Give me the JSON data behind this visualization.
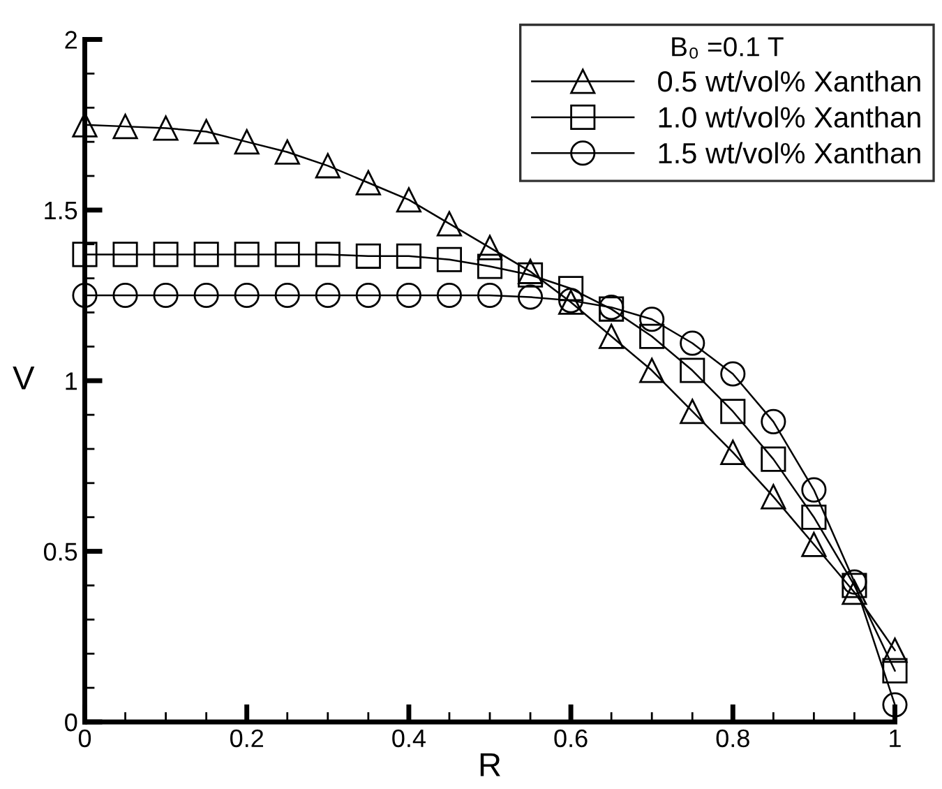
{
  "chart_data": {
    "type": "line",
    "xlabel": "R",
    "ylabel": "V",
    "legend_title": "B₀ =0.1 T",
    "x": [
      0,
      0.05,
      0.1,
      0.15,
      0.2,
      0.25,
      0.3,
      0.35,
      0.4,
      0.45,
      0.5,
      0.55,
      0.6,
      0.65,
      0.7,
      0.75,
      0.8,
      0.85,
      0.9,
      0.95,
      1.0
    ],
    "series": [
      {
        "name": "0.5 wt/vol% Xanthan",
        "color": "#000000",
        "marker": "triangle",
        "values": [
          1.75,
          1.745,
          1.74,
          1.73,
          1.7,
          1.67,
          1.63,
          1.58,
          1.53,
          1.46,
          1.39,
          1.32,
          1.23,
          1.13,
          1.03,
          0.91,
          0.79,
          0.66,
          0.52,
          0.38,
          0.21
        ]
      },
      {
        "name": "1.0 wt/vol% Xanthan",
        "color": "#000000",
        "marker": "square",
        "values": [
          1.37,
          1.37,
          1.37,
          1.37,
          1.37,
          1.37,
          1.37,
          1.365,
          1.365,
          1.355,
          1.335,
          1.31,
          1.27,
          1.21,
          1.13,
          1.03,
          0.91,
          0.77,
          0.6,
          0.4,
          0.15
        ]
      },
      {
        "name": "1.5 wt/vol% Xanthan",
        "color": "#000000",
        "marker": "circle",
        "values": [
          1.25,
          1.25,
          1.25,
          1.25,
          1.25,
          1.25,
          1.25,
          1.25,
          1.25,
          1.25,
          1.25,
          1.245,
          1.235,
          1.215,
          1.18,
          1.11,
          1.02,
          0.88,
          0.68,
          0.41,
          0.05
        ]
      }
    ],
    "xlim": [
      0,
      1
    ],
    "xticks": [
      0,
      0.2,
      0.4,
      0.6,
      0.8,
      1
    ],
    "ylim": [
      0,
      2
    ],
    "yticks": [
      0,
      0.5,
      1,
      1.5,
      2
    ],
    "grid": false,
    "legend": "top right",
    "line_style": "solid"
  }
}
